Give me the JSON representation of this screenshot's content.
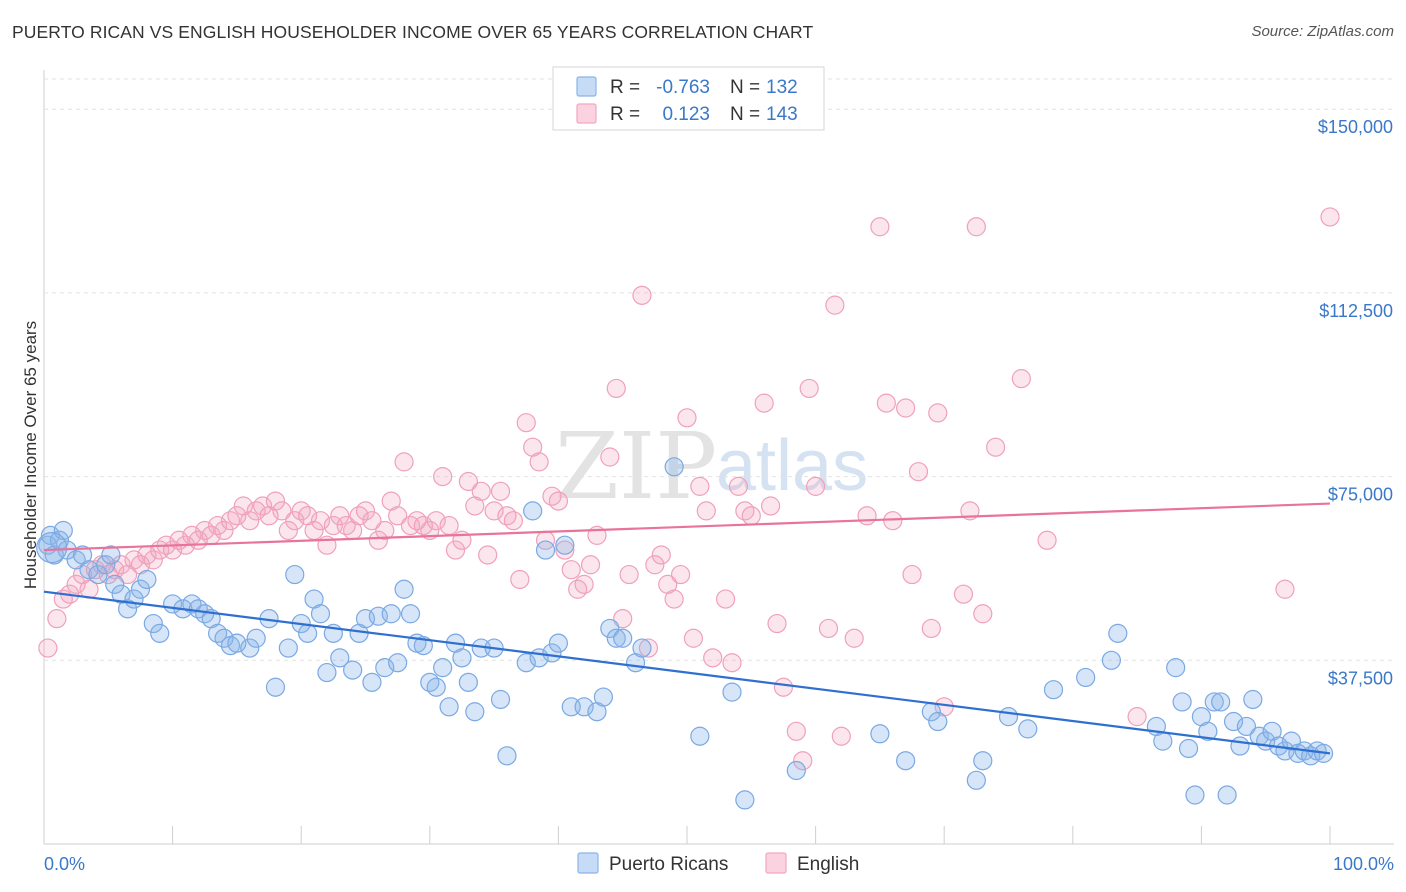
{
  "title": "PUERTO RICAN VS ENGLISH HOUSEHOLDER INCOME OVER 65 YEARS CORRELATION CHART",
  "source": "Source: ZipAtlas.com",
  "watermark": {
    "zip": "ZIP",
    "atlas": "atlas"
  },
  "legend": {
    "rows": [
      {
        "r_label": "R =",
        "r_value": "-0.763",
        "n_label": "N =",
        "n_value": "132",
        "color": "#8ab4e8"
      },
      {
        "r_label": "R =",
        "r_value": "0.123",
        "n_label": "N =",
        "n_value": "143",
        "color": "#f2a7bf"
      }
    ]
  },
  "bottom_legend": [
    {
      "label": "Puerto Ricans",
      "color": "#8ab4e8"
    },
    {
      "label": "English",
      "color": "#f2a7bf"
    }
  ],
  "chart_data": {
    "type": "scatter",
    "title": "PUERTO RICAN VS ENGLISH HOUSEHOLDER INCOME OVER 65 YEARS CORRELATION CHART",
    "xlabel": "",
    "ylabel": "Householder Income Over 65 years",
    "xlim": [
      0,
      100
    ],
    "ylim": [
      0,
      158000
    ],
    "x_tick_labels": [
      "0.0%",
      "100.0%"
    ],
    "y_ticks": [
      37500,
      75000,
      112500,
      150000
    ],
    "y_tick_labels": [
      "$37,500",
      "$75,000",
      "$112,500",
      "$150,000"
    ],
    "grid": "horizontal dashed",
    "legend_position": "top-center",
    "series": [
      {
        "name": "Puerto Ricans",
        "color": "#5b9be0",
        "trend": {
          "x": [
            0,
            100
          ],
          "y": [
            51500,
            18500
          ]
        },
        "points": [
          [
            0.3,
            61000
          ],
          [
            0.5,
            63000
          ],
          [
            0.8,
            59000
          ],
          [
            1.2,
            62000
          ],
          [
            1.5,
            64000
          ],
          [
            1.8,
            60000
          ],
          [
            2.5,
            58000
          ],
          [
            3.0,
            59000
          ],
          [
            3.5,
            56000
          ],
          [
            4.2,
            55000
          ],
          [
            4.8,
            57000
          ],
          [
            5.2,
            59000
          ],
          [
            5.5,
            53000
          ],
          [
            6.0,
            51000
          ],
          [
            6.5,
            48000
          ],
          [
            7.0,
            50000
          ],
          [
            7.5,
            52000
          ],
          [
            8.0,
            54000
          ],
          [
            8.5,
            45000
          ],
          [
            9.0,
            43000
          ],
          [
            10.0,
            49000
          ],
          [
            10.8,
            48000
          ],
          [
            11.5,
            49000
          ],
          [
            12.0,
            48000
          ],
          [
            12.5,
            47000
          ],
          [
            13.0,
            46000
          ],
          [
            13.5,
            43000
          ],
          [
            14.0,
            42000
          ],
          [
            14.5,
            40500
          ],
          [
            15.0,
            41000
          ],
          [
            16.0,
            40000
          ],
          [
            16.5,
            42000
          ],
          [
            17.5,
            46000
          ],
          [
            18.0,
            32000
          ],
          [
            19.0,
            40000
          ],
          [
            19.5,
            55000
          ],
          [
            20.0,
            45000
          ],
          [
            20.5,
            43000
          ],
          [
            21.0,
            50000
          ],
          [
            21.5,
            47000
          ],
          [
            22.0,
            35000
          ],
          [
            22.5,
            43000
          ],
          [
            23.0,
            38000
          ],
          [
            24.0,
            35500
          ],
          [
            24.5,
            43000
          ],
          [
            25.0,
            46000
          ],
          [
            25.5,
            33000
          ],
          [
            26.0,
            46500
          ],
          [
            26.5,
            36000
          ],
          [
            27.0,
            47000
          ],
          [
            27.5,
            37000
          ],
          [
            28.0,
            52000
          ],
          [
            28.5,
            47000
          ],
          [
            29.0,
            41000
          ],
          [
            29.5,
            40500
          ],
          [
            30.0,
            33000
          ],
          [
            30.5,
            32000
          ],
          [
            31.0,
            36000
          ],
          [
            31.5,
            28000
          ],
          [
            32.0,
            41000
          ],
          [
            32.5,
            38000
          ],
          [
            33.0,
            33000
          ],
          [
            33.5,
            27000
          ],
          [
            34.0,
            40000
          ],
          [
            35.0,
            40000
          ],
          [
            35.5,
            29500
          ],
          [
            36.0,
            18000
          ],
          [
            37.5,
            37000
          ],
          [
            38.0,
            68000
          ],
          [
            38.5,
            38000
          ],
          [
            39.0,
            60000
          ],
          [
            39.5,
            39000
          ],
          [
            40.0,
            41000
          ],
          [
            40.5,
            61000
          ],
          [
            41.0,
            28000
          ],
          [
            42.0,
            28000
          ],
          [
            43.0,
            27000
          ],
          [
            43.5,
            30000
          ],
          [
            44.0,
            44000
          ],
          [
            44.5,
            42000
          ],
          [
            45.0,
            42000
          ],
          [
            46.0,
            37000
          ],
          [
            46.5,
            40000
          ],
          [
            49.0,
            77000
          ],
          [
            51.0,
            22000
          ],
          [
            53.5,
            31000
          ],
          [
            54.5,
            9000
          ],
          [
            58.5,
            15000
          ],
          [
            65.0,
            22500
          ],
          [
            67.0,
            17000
          ],
          [
            69.0,
            27000
          ],
          [
            69.5,
            25000
          ],
          [
            72.5,
            13000
          ],
          [
            73.0,
            17000
          ],
          [
            75.0,
            26000
          ],
          [
            76.5,
            23500
          ],
          [
            78.5,
            31500
          ],
          [
            81.0,
            34000
          ],
          [
            83.0,
            37500
          ],
          [
            83.5,
            43000
          ],
          [
            86.5,
            24000
          ],
          [
            87.0,
            21000
          ],
          [
            88.0,
            36000
          ],
          [
            88.5,
            29000
          ],
          [
            89.0,
            19500
          ],
          [
            89.5,
            10000
          ],
          [
            90.0,
            26000
          ],
          [
            90.5,
            23000
          ],
          [
            91.0,
            29000
          ],
          [
            91.5,
            29000
          ],
          [
            92.0,
            10000
          ],
          [
            92.5,
            25000
          ],
          [
            93.0,
            20000
          ],
          [
            93.5,
            24000
          ],
          [
            94.0,
            29500
          ],
          [
            94.5,
            22000
          ],
          [
            95.0,
            21000
          ],
          [
            95.5,
            23000
          ],
          [
            96.0,
            20000
          ],
          [
            96.5,
            19000
          ],
          [
            97.0,
            21000
          ],
          [
            97.5,
            18500
          ],
          [
            98.0,
            19000
          ],
          [
            98.5,
            18000
          ],
          [
            99.0,
            19000
          ],
          [
            99.5,
            18500
          ]
        ]
      },
      {
        "name": "English",
        "color": "#f48fb1",
        "trend": {
          "x": [
            0,
            100
          ],
          "y": [
            60000,
            69500
          ]
        },
        "points": [
          [
            0.3,
            40000
          ],
          [
            1.0,
            46000
          ],
          [
            1.5,
            50000
          ],
          [
            2.0,
            51000
          ],
          [
            2.5,
            53000
          ],
          [
            3.0,
            55000
          ],
          [
            3.5,
            52000
          ],
          [
            4.0,
            56000
          ],
          [
            4.5,
            57000
          ],
          [
            5.0,
            55000
          ],
          [
            5.5,
            56000
          ],
          [
            6.0,
            57000
          ],
          [
            6.5,
            55000
          ],
          [
            7.0,
            58000
          ],
          [
            7.5,
            57000
          ],
          [
            8.0,
            59000
          ],
          [
            8.5,
            58000
          ],
          [
            9.0,
            60000
          ],
          [
            9.5,
            61000
          ],
          [
            10.0,
            60000
          ],
          [
            10.5,
            62000
          ],
          [
            11.0,
            61000
          ],
          [
            11.5,
            63000
          ],
          [
            12.0,
            62000
          ],
          [
            12.5,
            64000
          ],
          [
            13.0,
            63000
          ],
          [
            13.5,
            65000
          ],
          [
            14.0,
            64000
          ],
          [
            14.5,
            66000
          ],
          [
            15.0,
            67000
          ],
          [
            15.5,
            69000
          ],
          [
            16.0,
            66000
          ],
          [
            16.5,
            68000
          ],
          [
            17.0,
            69000
          ],
          [
            17.5,
            67000
          ],
          [
            18.0,
            70000
          ],
          [
            18.5,
            68000
          ],
          [
            19.0,
            64000
          ],
          [
            19.5,
            66000
          ],
          [
            20.0,
            68000
          ],
          [
            20.5,
            67000
          ],
          [
            21.0,
            64000
          ],
          [
            21.5,
            66000
          ],
          [
            22.0,
            61000
          ],
          [
            22.5,
            65000
          ],
          [
            23.0,
            67000
          ],
          [
            23.5,
            65000
          ],
          [
            24.0,
            64000
          ],
          [
            24.5,
            67000
          ],
          [
            25.0,
            68000
          ],
          [
            25.5,
            66000
          ],
          [
            26.0,
            62000
          ],
          [
            26.5,
            64000
          ],
          [
            27.0,
            70000
          ],
          [
            27.5,
            67000
          ],
          [
            28.0,
            78000
          ],
          [
            28.5,
            65000
          ],
          [
            29.0,
            66000
          ],
          [
            29.5,
            65000
          ],
          [
            30.0,
            64000
          ],
          [
            30.5,
            66000
          ],
          [
            31.0,
            75000
          ],
          [
            31.5,
            65000
          ],
          [
            32.0,
            60000
          ],
          [
            32.5,
            62000
          ],
          [
            33.0,
            74000
          ],
          [
            33.5,
            69000
          ],
          [
            34.0,
            72000
          ],
          [
            34.5,
            59000
          ],
          [
            35.0,
            68000
          ],
          [
            35.5,
            72000
          ],
          [
            36.0,
            67000
          ],
          [
            36.5,
            66000
          ],
          [
            37.0,
            54000
          ],
          [
            37.5,
            86000
          ],
          [
            38.0,
            81000
          ],
          [
            38.5,
            78000
          ],
          [
            39.0,
            62000
          ],
          [
            39.5,
            71000
          ],
          [
            40.0,
            70000
          ],
          [
            40.5,
            60000
          ],
          [
            41.0,
            56000
          ],
          [
            41.5,
            52000
          ],
          [
            42.0,
            53000
          ],
          [
            42.5,
            57000
          ],
          [
            43.0,
            63000
          ],
          [
            44.0,
            79000
          ],
          [
            44.5,
            93000
          ],
          [
            45.0,
            46000
          ],
          [
            45.5,
            55000
          ],
          [
            46.5,
            112000
          ],
          [
            47.0,
            40000
          ],
          [
            47.5,
            57000
          ],
          [
            48.0,
            59000
          ],
          [
            48.5,
            53000
          ],
          [
            49.0,
            50000
          ],
          [
            49.5,
            55000
          ],
          [
            50.0,
            87000
          ],
          [
            50.5,
            42000
          ],
          [
            51.0,
            73000
          ],
          [
            51.5,
            68000
          ],
          [
            52.0,
            38000
          ],
          [
            53.0,
            50000
          ],
          [
            53.5,
            37000
          ],
          [
            54.0,
            73000
          ],
          [
            54.5,
            68000
          ],
          [
            55.0,
            67000
          ],
          [
            56.0,
            90000
          ],
          [
            56.5,
            69000
          ],
          [
            57.0,
            45000
          ],
          [
            57.5,
            32000
          ],
          [
            58.5,
            23000
          ],
          [
            59.0,
            17000
          ],
          [
            59.5,
            93000
          ],
          [
            60.0,
            73000
          ],
          [
            61.0,
            44000
          ],
          [
            61.5,
            110000
          ],
          [
            62.0,
            22000
          ],
          [
            63.0,
            42000
          ],
          [
            64.0,
            67000
          ],
          [
            65.0,
            126000
          ],
          [
            65.5,
            90000
          ],
          [
            66.0,
            66000
          ],
          [
            67.0,
            89000
          ],
          [
            67.5,
            55000
          ],
          [
            68.0,
            76000
          ],
          [
            69.0,
            44000
          ],
          [
            69.5,
            88000
          ],
          [
            70.0,
            28000
          ],
          [
            71.5,
            51000
          ],
          [
            72.0,
            68000
          ],
          [
            72.5,
            126000
          ],
          [
            73.0,
            47000
          ],
          [
            74.0,
            81000
          ],
          [
            76.0,
            95000
          ],
          [
            78.0,
            62000
          ],
          [
            85.0,
            26000
          ],
          [
            96.5,
            52000
          ],
          [
            100.0,
            128000
          ]
        ]
      }
    ]
  }
}
